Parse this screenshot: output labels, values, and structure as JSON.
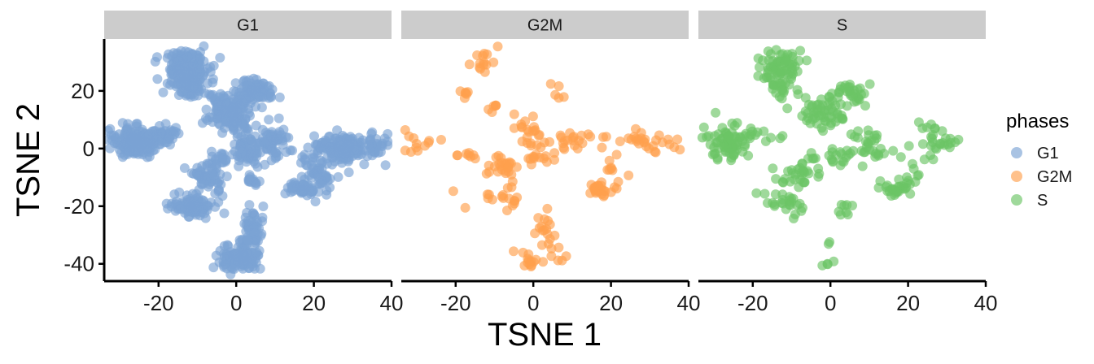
{
  "chart_data": {
    "type": "scatter",
    "xlabel": "TSNE 1",
    "ylabel": "TSNE 2",
    "xlim": [
      -34,
      40
    ],
    "ylim": [
      -46,
      38
    ],
    "x_ticks": [
      -20,
      0,
      20,
      40
    ],
    "y_ticks": [
      20,
      0,
      -20,
      -40
    ],
    "grid": false,
    "legend": {
      "title": "phases",
      "placement": "right",
      "items": [
        {
          "label": "G1",
          "color": "#7BA3D4"
        },
        {
          "label": "G2M",
          "color": "#FFA04D"
        },
        {
          "label": "S",
          "color": "#6CC465"
        }
      ]
    },
    "facets": [
      {
        "label": "G1",
        "color": "#7BA3D4",
        "clusters": [
          {
            "x": -13,
            "y": 27,
            "sx": 3.0,
            "sy": 3.5,
            "n": 180
          },
          {
            "x": -12,
            "y": 21,
            "sx": 2.0,
            "sy": 1.5,
            "n": 40
          },
          {
            "x": -26,
            "y": 2,
            "sx": 3.0,
            "sy": 2.5,
            "n": 190
          },
          {
            "x": -19,
            "y": 5,
            "sx": 3.0,
            "sy": 1.5,
            "n": 40
          },
          {
            "x": -2,
            "y": 14,
            "sx": 3.0,
            "sy": 3.0,
            "n": 130
          },
          {
            "x": 5,
            "y": 20,
            "sx": 2.5,
            "sy": 2.0,
            "n": 80
          },
          {
            "x": 0,
            "y": 9,
            "sx": 2.0,
            "sy": 1.5,
            "n": 40
          },
          {
            "x": 28,
            "y": 0,
            "sx": 4.5,
            "sy": 2.5,
            "n": 180
          },
          {
            "x": 21,
            "y": -8,
            "sx": 2.5,
            "sy": 3.0,
            "n": 50
          },
          {
            "x": 17,
            "y": -14,
            "sx": 2.0,
            "sy": 1.5,
            "n": 50
          },
          {
            "x": 10,
            "y": 2,
            "sx": 2.0,
            "sy": 3.0,
            "n": 60
          },
          {
            "x": 3,
            "y": -1,
            "sx": 2.0,
            "sy": 2.5,
            "n": 60
          },
          {
            "x": 4,
            "y": -11,
            "sx": 1.0,
            "sy": 1.0,
            "n": 15
          },
          {
            "x": -7,
            "y": -10,
            "sx": 2.0,
            "sy": 3.0,
            "n": 60
          },
          {
            "x": -11,
            "y": -20,
            "sx": 3.0,
            "sy": 2.0,
            "n": 90
          },
          {
            "x": 1,
            "y": -38,
            "sx": 2.5,
            "sy": 2.5,
            "n": 120
          },
          {
            "x": 4,
            "y": -28,
            "sx": 1.5,
            "sy": 3.5,
            "n": 50
          },
          {
            "x": -4,
            "y": -4,
            "sx": 1.5,
            "sy": 1.5,
            "n": 15
          }
        ]
      },
      {
        "label": "G2M",
        "color": "#FFA04D",
        "clusters": [
          {
            "x": -12,
            "y": 30,
            "sx": 3.0,
            "sy": 3.0,
            "n": 14
          },
          {
            "x": -17,
            "y": 19,
            "sx": 1.0,
            "sy": 1.0,
            "n": 6
          },
          {
            "x": -10,
            "y": 14,
            "sx": 1.5,
            "sy": 1.0,
            "n": 6
          },
          {
            "x": -29,
            "y": 2,
            "sx": 3.0,
            "sy": 3.0,
            "n": 12
          },
          {
            "x": -17,
            "y": -3,
            "sx": 1.5,
            "sy": 1.0,
            "n": 8
          },
          {
            "x": -8,
            "y": -6,
            "sx": 2.0,
            "sy": 2.0,
            "n": 25
          },
          {
            "x": -1,
            "y": 7,
            "sx": 2.5,
            "sy": 1.5,
            "n": 12
          },
          {
            "x": 2,
            "y": 0,
            "sx": 2.5,
            "sy": 2.5,
            "n": 25
          },
          {
            "x": 10,
            "y": 3,
            "sx": 2.5,
            "sy": 1.5,
            "n": 18
          },
          {
            "x": 6,
            "y": 20,
            "sx": 1.0,
            "sy": 1.5,
            "n": 5
          },
          {
            "x": 17,
            "y": -14,
            "sx": 2.0,
            "sy": 1.5,
            "n": 25
          },
          {
            "x": 21,
            "y": -8,
            "sx": 1.5,
            "sy": 2.5,
            "n": 8
          },
          {
            "x": 28,
            "y": 2,
            "sx": 5.0,
            "sy": 2.5,
            "n": 30
          },
          {
            "x": -10,
            "y": -18,
            "sx": 4.0,
            "sy": 2.5,
            "n": 14
          },
          {
            "x": 3,
            "y": -28,
            "sx": 1.5,
            "sy": 3.5,
            "n": 18
          },
          {
            "x": -1,
            "y": -39,
            "sx": 1.5,
            "sy": 1.5,
            "n": 14
          },
          {
            "x": 6,
            "y": -38,
            "sx": 1.0,
            "sy": 0.5,
            "n": 4
          },
          {
            "x": -5,
            "y": -17,
            "sx": 1.5,
            "sy": 2.0,
            "n": 5
          }
        ]
      },
      {
        "label": "S",
        "color": "#6CC465",
        "clusters": [
          {
            "x": -13,
            "y": 28,
            "sx": 3.0,
            "sy": 3.5,
            "n": 70
          },
          {
            "x": -12,
            "y": 21,
            "sx": 2.0,
            "sy": 1.5,
            "n": 12
          },
          {
            "x": -26,
            "y": 2,
            "sx": 3.0,
            "sy": 3.0,
            "n": 70
          },
          {
            "x": -19,
            "y": 5,
            "sx": 3.0,
            "sy": 1.5,
            "n": 12
          },
          {
            "x": -2,
            "y": 12,
            "sx": 3.5,
            "sy": 3.0,
            "n": 55
          },
          {
            "x": 5,
            "y": 19,
            "sx": 2.5,
            "sy": 2.5,
            "n": 30
          },
          {
            "x": 10,
            "y": 2,
            "sx": 2.0,
            "sy": 3.0,
            "n": 20
          },
          {
            "x": 3,
            "y": -3,
            "sx": 2.0,
            "sy": 2.0,
            "n": 18
          },
          {
            "x": -8,
            "y": -9,
            "sx": 3.0,
            "sy": 2.0,
            "n": 30
          },
          {
            "x": -11,
            "y": -19,
            "sx": 3.0,
            "sy": 2.0,
            "n": 25
          },
          {
            "x": 4,
            "y": -22,
            "sx": 1.0,
            "sy": 2.0,
            "n": 8
          },
          {
            "x": 0,
            "y": -40,
            "sx": 0.6,
            "sy": 0.6,
            "n": 4
          },
          {
            "x": 0,
            "y": -33,
            "sx": 0.5,
            "sy": 1.0,
            "n": 2
          },
          {
            "x": 17,
            "y": -14,
            "sx": 2.0,
            "sy": 1.5,
            "n": 25
          },
          {
            "x": 21,
            "y": -8,
            "sx": 1.5,
            "sy": 2.5,
            "n": 10
          },
          {
            "x": 27,
            "y": 2,
            "sx": 4.0,
            "sy": 3.0,
            "n": 30
          },
          {
            "x": 13,
            "y": -3,
            "sx": 1.5,
            "sy": 1.5,
            "n": 6
          },
          {
            "x": -4,
            "y": -4,
            "sx": 1.0,
            "sy": 1.0,
            "n": 5
          }
        ]
      }
    ]
  }
}
